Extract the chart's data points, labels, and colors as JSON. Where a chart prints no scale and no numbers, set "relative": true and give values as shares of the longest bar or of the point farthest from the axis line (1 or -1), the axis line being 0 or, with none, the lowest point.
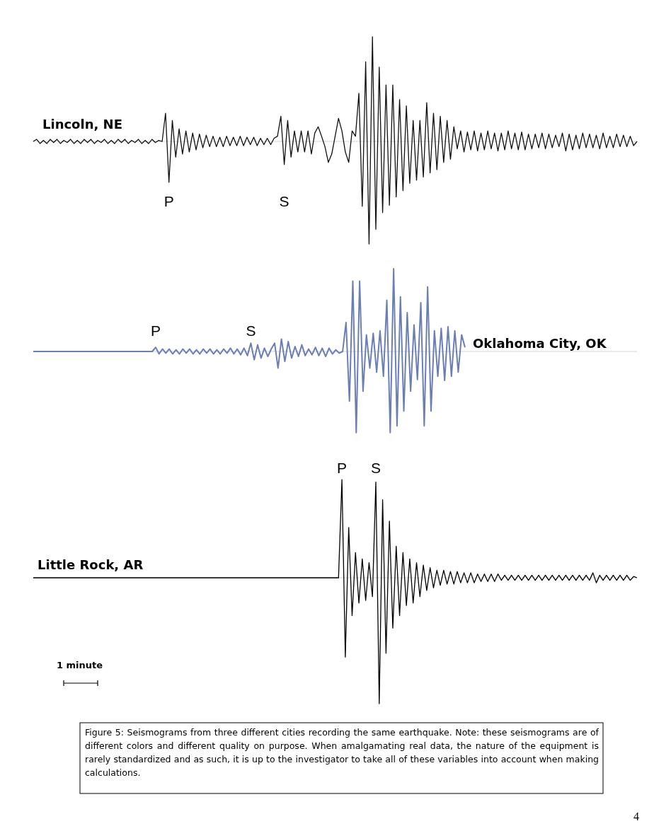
{
  "chart_data": [
    {
      "type": "line",
      "title": "Lincoln, NE",
      "relative": true,
      "line_style": "solid",
      "marker": "none",
      "categories": [
        null,
        null,
        null,
        null,
        null,
        null,
        null,
        null,
        null,
        null,
        null,
        null,
        null,
        null,
        null,
        null,
        null,
        null,
        null,
        null,
        null,
        null,
        null,
        null,
        null,
        null,
        null,
        null,
        null,
        null,
        null,
        null,
        null,
        null,
        null,
        null,
        null,
        null,
        null,
        null,
        null,
        null,
        null,
        null,
        null,
        null,
        null,
        null,
        null,
        null,
        null,
        null,
        null,
        null,
        null,
        null,
        null,
        null,
        null,
        null,
        null,
        null,
        null,
        null,
        null,
        null,
        null,
        null,
        null,
        null,
        null,
        null,
        null,
        null,
        null,
        null,
        null,
        null,
        null,
        null,
        null,
        null,
        null,
        null,
        null,
        null,
        null,
        null,
        null,
        null,
        null,
        null,
        null,
        null,
        null,
        null,
        null,
        null,
        null,
        null,
        null,
        null,
        null,
        null,
        null,
        null,
        null,
        null,
        null,
        null,
        null,
        null,
        null,
        null,
        null,
        null,
        null,
        null,
        null,
        null,
        null,
        null,
        null,
        null,
        null,
        null,
        null,
        null,
        null,
        null,
        null,
        null,
        null,
        null,
        null,
        null,
        null,
        null,
        null,
        null,
        null,
        null,
        null,
        null,
        null,
        null,
        null,
        null,
        null,
        null,
        null,
        null,
        null,
        null,
        null,
        null,
        null,
        null,
        null,
        null,
        null,
        null,
        null,
        null,
        null,
        null,
        null,
        null,
        null,
        null,
        null,
        null,
        null,
        null,
        null,
        null,
        null,
        null,
        null
      ],
      "annotations": [
        {
          "text": "P",
          "y": -0.39
        },
        {
          "text": "S",
          "y": -0.22
        }
      ],
      "series": [
        {
          "color": "#111111",
          "values": [
            0,
            0.02,
            -0.02,
            0.01,
            -0.02,
            0.02,
            -0.01,
            0.02,
            -0.02,
            0.01,
            -0.01,
            0.02,
            -0.02,
            0.01,
            -0.02,
            0.02,
            -0.01,
            0.02,
            -0.02,
            0.01,
            -0.01,
            0.02,
            -0.02,
            0.01,
            -0.02,
            0.02,
            -0.01,
            0.02,
            -0.02,
            0.01,
            -0.01,
            0.02,
            -0.02,
            0.01,
            -0.02,
            0.02,
            -0.01,
            0.01,
            0,
            0.27,
            -0.39,
            0.2,
            -0.15,
            0.12,
            -0.12,
            0.1,
            -0.1,
            0.08,
            -0.08,
            0.07,
            -0.06,
            0.06,
            -0.05,
            0.05,
            -0.05,
            0.04,
            -0.05,
            0.05,
            -0.04,
            0.04,
            -0.04,
            0.05,
            -0.04,
            0.04,
            -0.03,
            0.04,
            -0.04,
            0.03,
            -0.03,
            0.03,
            -0.03,
            0.03,
            0.05,
            0.24,
            -0.22,
            0.2,
            -0.15,
            0.1,
            -0.1,
            0.1,
            -0.1,
            0.1,
            -0.12,
            0.08,
            0.14,
            0.05,
            -0.05,
            -0.2,
            -0.12,
            0.05,
            0.22,
            0.1,
            -0.1,
            -0.2,
            0.1,
            0.05,
            0.46,
            -0.62,
            0.76,
            -0.98,
            1.0,
            -0.84,
            0.71,
            -0.68,
            0.54,
            -0.61,
            0.54,
            -0.53,
            0.4,
            -0.47,
            0.34,
            -0.4,
            0.2,
            -0.37,
            0.2,
            -0.34,
            0.37,
            -0.3,
            0.27,
            -0.27,
            0.24,
            -0.2,
            0.2,
            -0.17,
            0.14,
            -0.07,
            0.1,
            -0.1,
            0.09,
            -0.08,
            0.1,
            -0.09,
            0.08,
            -0.08,
            0.1,
            -0.07,
            0.08,
            -0.09,
            0.08,
            -0.08,
            0.1,
            -0.07,
            0.08,
            -0.08,
            0.09,
            -0.08,
            0.07,
            -0.07,
            0.07,
            -0.06,
            0.08,
            -0.07,
            0.07,
            -0.06,
            0.06,
            -0.05,
            0.08,
            -0.09,
            0.07,
            -0.08,
            0.06,
            -0.07,
            0.08,
            -0.06,
            0.07,
            -0.06,
            0.06,
            -0.07,
            0.08,
            -0.06,
            0.05,
            -0.06,
            0.07,
            -0.05,
            0.06,
            -0.05,
            0.05,
            -0.04,
            0
          ]
        }
      ]
    },
    {
      "type": "line",
      "title": "Oklahoma City, OK",
      "relative": true,
      "line_style": "solid",
      "marker": "none",
      "categories": [
        null,
        null,
        null,
        null,
        null,
        null,
        null,
        null,
        null,
        null,
        null,
        null,
        null,
        null,
        null,
        null,
        null,
        null,
        null,
        null,
        null,
        null,
        null,
        null,
        null,
        null,
        null,
        null,
        null,
        null,
        null,
        null,
        null,
        null,
        null,
        null,
        null,
        null,
        null,
        null,
        null,
        null,
        null,
        null,
        null,
        null,
        null,
        null,
        null,
        null,
        null,
        null,
        null,
        null,
        null,
        null,
        null,
        null,
        null,
        null,
        null,
        null,
        null,
        null,
        null,
        null,
        null,
        null,
        null,
        null,
        null,
        null,
        null,
        null,
        null,
        null,
        null,
        null,
        null,
        null,
        null,
        null,
        null,
        null,
        null,
        null,
        null,
        null,
        null,
        null,
        null,
        null,
        null,
        null,
        null,
        null,
        null,
        null,
        null,
        null,
        null,
        null,
        null,
        null,
        null,
        null,
        null,
        null,
        null,
        null,
        null,
        null,
        null,
        null,
        null,
        null,
        null,
        null,
        null,
        null,
        null,
        null,
        null,
        null,
        null,
        null,
        null,
        null
      ],
      "annotations": [
        {
          "text": "P",
          "y": 0.05
        },
        {
          "text": "S",
          "y": 0.1
        }
      ],
      "series": [
        {
          "color": "#6b7fb5",
          "values": [
            0,
            0,
            0,
            0,
            0,
            0,
            0,
            0,
            0,
            0,
            0,
            0,
            0,
            0,
            0,
            0,
            0,
            0,
            0,
            0,
            0,
            0,
            0,
            0,
            0,
            0,
            0,
            0,
            0,
            0,
            0,
            0,
            0,
            0,
            0,
            0,
            0.05,
            -0.03,
            0.03,
            -0.02,
            0.03,
            -0.03,
            0.02,
            -0.03,
            0.03,
            -0.02,
            0.03,
            -0.03,
            0.02,
            -0.03,
            0.03,
            -0.02,
            0.03,
            -0.03,
            0.02,
            -0.03,
            0.03,
            -0.02,
            0.04,
            -0.03,
            0.03,
            -0.04,
            0.04,
            -0.05,
            0.1,
            -0.1,
            0.08,
            -0.08,
            0.04,
            -0.06,
            0.03,
            0.1,
            -0.2,
            0.15,
            -0.12,
            0.12,
            -0.08,
            0.06,
            -0.06,
            0.08,
            -0.05,
            0.03,
            -0.04,
            0.05,
            -0.05,
            0.04,
            -0.06,
            0.04,
            -0.03,
            0.02,
            -0.02,
            0,
            0.35,
            -0.6,
            0.85,
            -0.98,
            0.85,
            -0.48,
            0.2,
            -0.2,
            0.22,
            -0.25,
            0.25,
            -0.3,
            0.62,
            -0.98,
            1.0,
            -0.9,
            0.66,
            -0.72,
            0.47,
            -0.48,
            0.32,
            -0.34,
            0.59,
            -0.9,
            0.78,
            -0.72,
            0.25,
            -0.3,
            0.28,
            -0.35,
            0.3,
            -0.3,
            0.25,
            -0.25,
            0.2,
            0.05
          ]
        }
      ]
    },
    {
      "type": "line",
      "title": "Little Rock, AR",
      "relative": true,
      "line_style": "solid",
      "marker": "none",
      "categories": [
        null,
        null,
        null,
        null,
        null,
        null,
        null,
        null,
        null,
        null,
        null,
        null,
        null,
        null,
        null,
        null,
        null,
        null,
        null,
        null,
        null,
        null,
        null,
        null,
        null,
        null,
        null,
        null,
        null,
        null,
        null,
        null,
        null,
        null,
        null,
        null,
        null,
        null,
        null,
        null,
        null,
        null,
        null,
        null,
        null,
        null,
        null,
        null,
        null,
        null,
        null,
        null,
        null,
        null,
        null,
        null,
        null,
        null,
        null,
        null,
        null,
        null,
        null,
        null,
        null,
        null,
        null,
        null,
        null,
        null,
        null,
        null,
        null,
        null,
        null,
        null,
        null,
        null,
        null,
        null,
        null,
        null,
        null,
        null,
        null,
        null,
        null,
        null,
        null,
        null,
        null,
        null,
        null,
        null,
        null,
        null,
        null,
        null,
        null,
        null,
        null,
        null,
        null,
        null,
        null,
        null,
        null,
        null,
        null,
        null,
        null,
        null,
        null,
        null,
        null,
        null,
        null,
        null,
        null,
        null,
        null,
        null,
        null,
        null,
        null,
        null,
        null,
        null,
        null,
        null,
        null,
        null,
        null,
        null,
        null,
        null,
        null,
        null,
        null,
        null,
        null,
        null,
        null,
        null,
        null,
        null,
        null,
        null,
        null,
        null,
        null,
        null,
        null,
        null,
        null,
        null,
        null,
        null,
        null,
        null,
        null,
        null,
        null,
        null,
        null,
        null,
        null,
        null,
        null,
        null,
        null,
        null,
        null,
        null,
        null,
        null,
        null,
        null,
        null
      ],
      "annotations": [
        {
          "text": "P",
          "y": 0.78
        },
        {
          "text": "S",
          "y": 0.76
        },
        "1 minute",
        "Figure 5: Seismograms from three different cities recording the same earthquake. Note: these seismograms are of different colors and different quality on purpose. When amalgamating real data, the nature of the equipment is rarely standardized and as such, it is up to the investigator to take all of these variables into account when making calculations.",
        "4"
      ],
      "series": [
        {
          "color": "#000000",
          "values": [
            0,
            0,
            0,
            0,
            0,
            0,
            0,
            0,
            0,
            0,
            0,
            0,
            0,
            0,
            0,
            0,
            0,
            0,
            0,
            0,
            0,
            0,
            0,
            0,
            0,
            0,
            0,
            0,
            0,
            0,
            0,
            0,
            0,
            0,
            0,
            0,
            0,
            0,
            0,
            0,
            0,
            0,
            0,
            0,
            0,
            0,
            0,
            0,
            0,
            0,
            0,
            0,
            0,
            0,
            0,
            0,
            0,
            0,
            0,
            0,
            0,
            0,
            0,
            0,
            0,
            0,
            0,
            0,
            0,
            0,
            0,
            0,
            0,
            0,
            0,
            0,
            0,
            0,
            0,
            0,
            0,
            0,
            0,
            0,
            0,
            0,
            0,
            0,
            0,
            0,
            0,
            0.78,
            -0.63,
            0.4,
            -0.3,
            0.2,
            -0.2,
            0.15,
            -0.18,
            0.12,
            -0.15,
            0.76,
            -1.0,
            0.62,
            -0.6,
            0.45,
            -0.4,
            0.25,
            -0.3,
            0.2,
            -0.22,
            0.15,
            -0.2,
            0.12,
            -0.15,
            0.1,
            -0.1,
            0.08,
            -0.08,
            0.06,
            -0.06,
            0.06,
            -0.05,
            0.05,
            -0.05,
            0.05,
            -0.04,
            0.04,
            -0.04,
            0.04,
            -0.04,
            0.03,
            -0.03,
            0.03,
            -0.03,
            0.03,
            -0.03,
            0.03,
            -0.02,
            0.02,
            -0.02,
            0.02,
            -0.02,
            0.02,
            -0.02,
            0.02,
            -0.02,
            0.02,
            -0.02,
            0.02,
            -0.02,
            0.02,
            -0.02,
            0.02,
            -0.02,
            0.02,
            -0.02,
            0.02,
            -0.02,
            0.02,
            -0.02,
            0.02,
            -0.02,
            0.02,
            -0.02,
            0.04,
            -0.04,
            0.02,
            -0.02,
            0.02,
            -0.02,
            0.02,
            -0.02,
            0.02,
            -0.02,
            0.02,
            -0.02,
            0.01,
            0
          ]
        }
      ]
    }
  ]
}
